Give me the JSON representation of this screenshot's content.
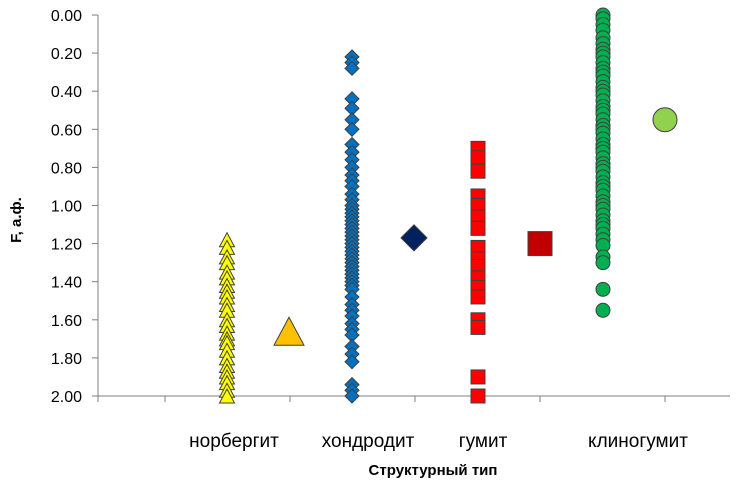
{
  "chart_data": {
    "type": "scatter",
    "xlabel": "Структурный тип",
    "ylabel": "F, а.ф.",
    "ylim": [
      0,
      2
    ],
    "y_inverted": true,
    "y_ticks": [
      "0.00",
      "0.20",
      "0.40",
      "0.60",
      "0.80",
      "1.00",
      "1.20",
      "1.40",
      "1.60",
      "1.80",
      "2.00"
    ],
    "categories": [
      "норбергит",
      "хондродит",
      "гумит",
      "клиногумит"
    ],
    "grid": false,
    "legend": "none",
    "series": [
      {
        "category": "норбергит",
        "marker": "triangle",
        "color": "#ffff00",
        "values": [
          1.18,
          1.22,
          1.27,
          1.3,
          1.35,
          1.38,
          1.42,
          1.45,
          1.48,
          1.52,
          1.55,
          1.6,
          1.63,
          1.67,
          1.7,
          1.72,
          1.76,
          1.8,
          1.84,
          1.87,
          1.9,
          1.93,
          1.97,
          2.0
        ]
      },
      {
        "category": "норбергит",
        "marker": "triangle-large",
        "color": "#ffc000",
        "values": [
          1.66
        ]
      },
      {
        "category": "хондродит",
        "marker": "diamond",
        "color": "#0070c0",
        "values": [
          0.22,
          0.25,
          0.28,
          0.44,
          0.49,
          0.55,
          0.6,
          0.68,
          0.72,
          0.76,
          0.8,
          0.84,
          0.87,
          0.9,
          0.94,
          0.97,
          1.0,
          1.02,
          1.04,
          1.06,
          1.08,
          1.1,
          1.12,
          1.14,
          1.16,
          1.18,
          1.2,
          1.22,
          1.24,
          1.26,
          1.28,
          1.3,
          1.32,
          1.34,
          1.36,
          1.38,
          1.4,
          1.42,
          1.44,
          1.48,
          1.52,
          1.55,
          1.58,
          1.62,
          1.65,
          1.68,
          1.74,
          1.78,
          1.82,
          1.94,
          1.97,
          2.0
        ]
      },
      {
        "category": "хондродит",
        "marker": "diamond-large",
        "color": "#002060",
        "values": [
          1.17
        ]
      },
      {
        "category": "гумит",
        "marker": "square",
        "color": "#ff0000",
        "values": [
          0.7,
          0.75,
          0.82,
          0.95,
          1.0,
          1.06,
          1.12,
          1.22,
          1.28,
          1.32,
          1.38,
          1.43,
          1.48,
          1.6,
          1.64,
          1.9,
          2.0
        ]
      },
      {
        "category": "гумит",
        "marker": "square-large",
        "color": "#c00000",
        "values": [
          1.2
        ]
      },
      {
        "category": "клиногумит",
        "marker": "circle",
        "color": "#00b050",
        "values": [
          0.0,
          0.02,
          0.05,
          0.08,
          0.12,
          0.15,
          0.18,
          0.2,
          0.22,
          0.25,
          0.28,
          0.3,
          0.32,
          0.35,
          0.38,
          0.4,
          0.42,
          0.45,
          0.48,
          0.5,
          0.52,
          0.55,
          0.58,
          0.6,
          0.62,
          0.65,
          0.68,
          0.7,
          0.72,
          0.75,
          0.78,
          0.8,
          0.82,
          0.85,
          0.88,
          0.9,
          0.92,
          0.95,
          0.98,
          1.0,
          1.02,
          1.05,
          1.08,
          1.1,
          1.12,
          1.15,
          1.18,
          1.21,
          1.27,
          1.3,
          1.44,
          1.55
        ]
      },
      {
        "category": "клиногумит",
        "marker": "circle-large",
        "color": "#92d050",
        "values": [
          0.55
        ]
      }
    ]
  }
}
